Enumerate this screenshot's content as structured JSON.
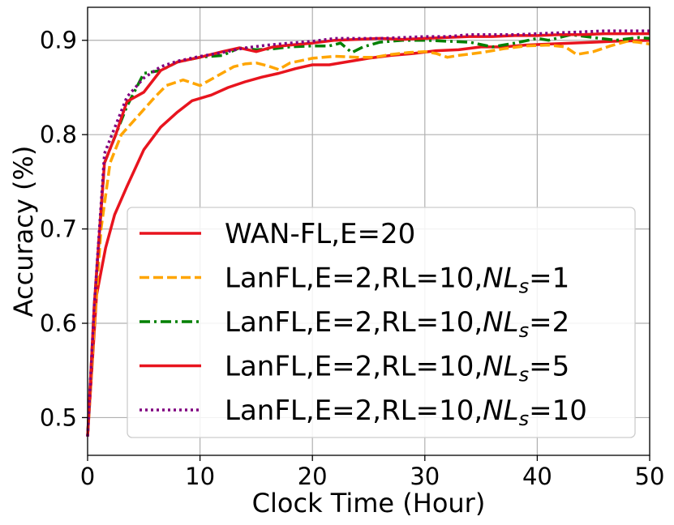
{
  "chart_data": {
    "type": "line",
    "title": "",
    "xlabel": "Clock Time (Hour)",
    "ylabel": "Accuracy (%)",
    "xlim": [
      0,
      50
    ],
    "ylim": [
      0.46,
      0.935
    ],
    "xticks": [
      0,
      10,
      20,
      30,
      40,
      50
    ],
    "yticks": [
      0.5,
      0.6,
      0.7,
      0.8,
      0.9
    ],
    "xtick_labels": [
      "0",
      "10",
      "20",
      "30",
      "40",
      "50"
    ],
    "ytick_labels": [
      "0.5",
      "0.6",
      "0.7",
      "0.8",
      "0.9"
    ],
    "grid": true,
    "legend_position": "lower-right",
    "series": [
      {
        "name": "WAN-FL,E=20",
        "color": "#e8141e",
        "dash": "solid",
        "points": [
          [
            0,
            0.48
          ],
          [
            0.8,
            0.63
          ],
          [
            1.6,
            0.68
          ],
          [
            2.4,
            0.715
          ],
          [
            3.5,
            0.745
          ],
          [
            5,
            0.784
          ],
          [
            6.5,
            0.808
          ],
          [
            8,
            0.824
          ],
          [
            9.3,
            0.836
          ],
          [
            11,
            0.842
          ],
          [
            12.5,
            0.85
          ],
          [
            14,
            0.856
          ],
          [
            15.5,
            0.861
          ],
          [
            17,
            0.865
          ],
          [
            18.5,
            0.87
          ],
          [
            20,
            0.874
          ],
          [
            21.5,
            0.874
          ],
          [
            23,
            0.877
          ],
          [
            25,
            0.881
          ],
          [
            27,
            0.884
          ],
          [
            29,
            0.886
          ],
          [
            31,
            0.889
          ],
          [
            33,
            0.89
          ],
          [
            35,
            0.893
          ],
          [
            37,
            0.893
          ],
          [
            39,
            0.895
          ],
          [
            41,
            0.896
          ],
          [
            43,
            0.897
          ],
          [
            45,
            0.898
          ],
          [
            47,
            0.899
          ],
          [
            50,
            0.9
          ]
        ]
      },
      {
        "name": "LanFL,E=2,RL=10,NLs=1",
        "label_prefix": "LanFL,E=2,RL=10,",
        "label_italic": "NL",
        "label_sub": "s",
        "label_suffix": "=1",
        "color": "#ffa500",
        "dash": "dashed",
        "points": [
          [
            0,
            0.48
          ],
          [
            0.6,
            0.6
          ],
          [
            1.2,
            0.7
          ],
          [
            2,
            0.77
          ],
          [
            3,
            0.8
          ],
          [
            4.5,
            0.82
          ],
          [
            6,
            0.84
          ],
          [
            7,
            0.852
          ],
          [
            8.5,
            0.858
          ],
          [
            10,
            0.852
          ],
          [
            11.5,
            0.862
          ],
          [
            13,
            0.872
          ],
          [
            14,
            0.875
          ],
          [
            15,
            0.876
          ],
          [
            16,
            0.873
          ],
          [
            17,
            0.869
          ],
          [
            18,
            0.876
          ],
          [
            20,
            0.881
          ],
          [
            22,
            0.883
          ],
          [
            24,
            0.882
          ],
          [
            25.5,
            0.882
          ],
          [
            27,
            0.885
          ],
          [
            28.5,
            0.887
          ],
          [
            30,
            0.888
          ],
          [
            31,
            0.886
          ],
          [
            32,
            0.882
          ],
          [
            33,
            0.884
          ],
          [
            35,
            0.887
          ],
          [
            37,
            0.891
          ],
          [
            39,
            0.894
          ],
          [
            41,
            0.895
          ],
          [
            42.5,
            0.893
          ],
          [
            43.5,
            0.885
          ],
          [
            45,
            0.888
          ],
          [
            46.5,
            0.894
          ],
          [
            48,
            0.899
          ],
          [
            49,
            0.898
          ],
          [
            50,
            0.896
          ]
        ]
      },
      {
        "name": "LanFL,E=2,RL=10,NLs=2",
        "label_prefix": "LanFL,E=2,RL=10,",
        "label_italic": "NL",
        "label_sub": "s",
        "label_suffix": "=2",
        "color": "#008000",
        "dash": "dashdot",
        "points": [
          [
            0,
            0.48
          ],
          [
            0.6,
            0.62
          ],
          [
            1.5,
            0.77
          ],
          [
            2.5,
            0.8
          ],
          [
            3.5,
            0.83
          ],
          [
            5,
            0.865
          ],
          [
            6.5,
            0.868
          ],
          [
            8,
            0.877
          ],
          [
            10,
            0.882
          ],
          [
            12,
            0.884
          ],
          [
            13.5,
            0.892
          ],
          [
            15,
            0.89
          ],
          [
            16.5,
            0.891
          ],
          [
            18,
            0.893
          ],
          [
            20,
            0.894
          ],
          [
            21.5,
            0.894
          ],
          [
            22.5,
            0.897
          ],
          [
            23.5,
            0.887
          ],
          [
            24.5,
            0.893
          ],
          [
            26,
            0.898
          ],
          [
            28,
            0.9
          ],
          [
            30,
            0.9
          ],
          [
            32,
            0.899
          ],
          [
            34,
            0.898
          ],
          [
            36,
            0.893
          ],
          [
            38,
            0.897
          ],
          [
            40,
            0.902
          ],
          [
            41,
            0.9
          ],
          [
            43,
            0.906
          ],
          [
            45,
            0.903
          ],
          [
            47,
            0.9
          ],
          [
            49,
            0.903
          ],
          [
            50,
            0.902
          ]
        ]
      },
      {
        "name": "LanFL,E=2,RL=10,NLs=5",
        "label_prefix": "LanFL,E=2,RL=10,",
        "label_italic": "NL",
        "label_sub": "s",
        "label_suffix": "=5",
        "color": "#e8141e",
        "dash": "solid",
        "points": [
          [
            0,
            0.48
          ],
          [
            0.6,
            0.62
          ],
          [
            1.5,
            0.77
          ],
          [
            2.5,
            0.8
          ],
          [
            3.5,
            0.835
          ],
          [
            5,
            0.845
          ],
          [
            6.5,
            0.868
          ],
          [
            8,
            0.877
          ],
          [
            10,
            0.882
          ],
          [
            12,
            0.888
          ],
          [
            13.5,
            0.892
          ],
          [
            15,
            0.888
          ],
          [
            16.5,
            0.893
          ],
          [
            18,
            0.895
          ],
          [
            20,
            0.897
          ],
          [
            22,
            0.9
          ],
          [
            24,
            0.901
          ],
          [
            26,
            0.902
          ],
          [
            28,
            0.901
          ],
          [
            30,
            0.902
          ],
          [
            32,
            0.903
          ],
          [
            34,
            0.904
          ],
          [
            36,
            0.904
          ],
          [
            38,
            0.905
          ],
          [
            40,
            0.905
          ],
          [
            42,
            0.906
          ],
          [
            44,
            0.906
          ],
          [
            46,
            0.907
          ],
          [
            48,
            0.907
          ],
          [
            50,
            0.907
          ]
        ]
      },
      {
        "name": "LanFL,E=2,RL=10,NLs=10",
        "label_prefix": "LanFL,E=2,RL=10,",
        "label_italic": "NL",
        "label_sub": "s",
        "label_suffix": "=10",
        "color": "#800080",
        "dash": "dotted",
        "points": [
          [
            0,
            0.48
          ],
          [
            0.6,
            0.62
          ],
          [
            1.5,
            0.78
          ],
          [
            2.5,
            0.81
          ],
          [
            3.5,
            0.84
          ],
          [
            5,
            0.86
          ],
          [
            6.5,
            0.872
          ],
          [
            8,
            0.878
          ],
          [
            10,
            0.883
          ],
          [
            12,
            0.887
          ],
          [
            14,
            0.892
          ],
          [
            16,
            0.895
          ],
          [
            18,
            0.897
          ],
          [
            20,
            0.899
          ],
          [
            22,
            0.902
          ],
          [
            24,
            0.902
          ],
          [
            26,
            0.902
          ],
          [
            28,
            0.903
          ],
          [
            30,
            0.904
          ],
          [
            32,
            0.904
          ],
          [
            34,
            0.906
          ],
          [
            36,
            0.906
          ],
          [
            38,
            0.906
          ],
          [
            40,
            0.907
          ],
          [
            42,
            0.908
          ],
          [
            44,
            0.909
          ],
          [
            46,
            0.91
          ],
          [
            48,
            0.91
          ],
          [
            50,
            0.91
          ]
        ]
      }
    ]
  }
}
